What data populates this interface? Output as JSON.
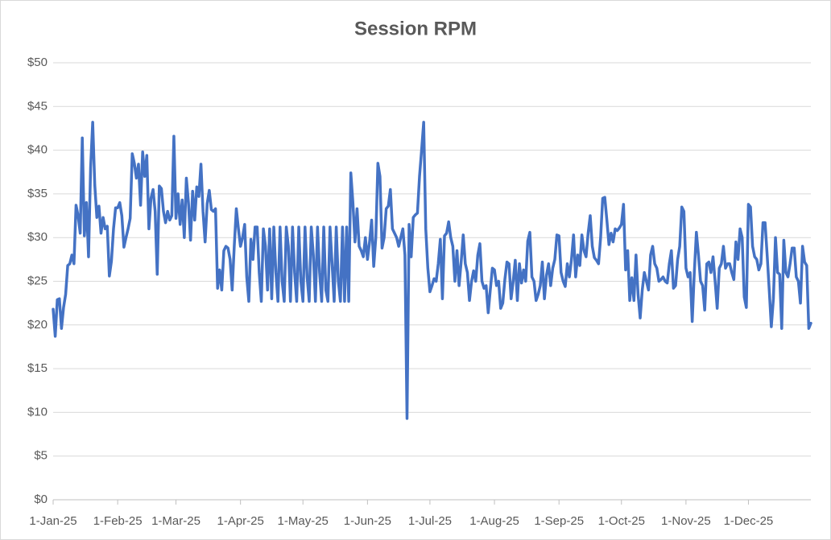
{
  "chart_data": {
    "type": "line",
    "title": "Session RPM",
    "x": [
      "2025-01-01",
      "2025-01-02",
      "2025-01-03",
      "2025-01-04",
      "2025-01-05",
      "2025-01-06",
      "2025-01-07",
      "2025-01-08",
      "2025-01-09",
      "2025-01-10",
      "2025-01-11",
      "2025-01-12",
      "2025-01-13",
      "2025-01-14",
      "2025-01-15",
      "2025-01-16",
      "2025-01-17",
      "2025-01-18",
      "2025-01-19",
      "2025-01-20",
      "2025-01-21",
      "2025-01-22",
      "2025-01-23",
      "2025-01-24",
      "2025-01-25",
      "2025-01-26",
      "2025-01-27",
      "2025-01-28",
      "2025-01-29",
      "2025-01-30",
      "2025-01-31",
      "2025-02-01",
      "2025-02-02",
      "2025-02-03",
      "2025-02-04",
      "2025-02-05",
      "2025-02-06",
      "2025-02-07",
      "2025-02-08",
      "2025-02-09",
      "2025-02-10",
      "2025-02-11",
      "2025-02-12",
      "2025-02-13",
      "2025-02-14",
      "2025-02-15",
      "2025-02-16",
      "2025-02-17",
      "2025-02-18",
      "2025-02-19",
      "2025-02-20",
      "2025-02-21",
      "2025-02-22",
      "2025-02-23",
      "2025-02-24",
      "2025-02-25",
      "2025-02-26",
      "2025-02-27",
      "2025-02-28",
      "2025-03-01",
      "2025-03-02",
      "2025-03-03",
      "2025-03-04",
      "2025-03-05",
      "2025-03-06",
      "2025-03-07",
      "2025-03-08",
      "2025-03-09",
      "2025-03-10",
      "2025-03-11",
      "2025-03-12",
      "2025-03-13",
      "2025-03-14",
      "2025-03-15",
      "2025-03-16",
      "2025-03-17",
      "2025-03-18",
      "2025-03-19",
      "2025-03-20",
      "2025-03-21",
      "2025-03-22",
      "2025-03-23",
      "2025-03-24",
      "2025-03-25",
      "2025-03-26",
      "2025-03-27",
      "2025-03-28",
      "2025-03-29",
      "2025-03-30",
      "2025-03-31",
      "2025-04-01",
      "2025-04-02",
      "2025-04-03",
      "2025-04-04",
      "2025-04-05",
      "2025-04-06",
      "2025-04-07",
      "2025-04-08",
      "2025-04-09",
      "2025-04-10",
      "2025-04-11",
      "2025-04-12",
      "2025-04-13",
      "2025-04-14",
      "2025-04-15",
      "2025-04-16",
      "2025-04-17",
      "2025-04-18",
      "2025-04-19",
      "2025-04-20",
      "2025-04-21",
      "2025-04-22",
      "2025-04-23",
      "2025-04-24",
      "2025-04-25",
      "2025-04-26",
      "2025-04-27",
      "2025-04-28",
      "2025-04-29",
      "2025-04-30",
      "2025-05-01",
      "2025-05-02",
      "2025-05-03",
      "2025-05-04",
      "2025-05-05",
      "2025-05-06",
      "2025-05-07",
      "2025-05-08",
      "2025-05-09",
      "2025-05-10",
      "2025-05-11",
      "2025-05-12",
      "2025-05-13",
      "2025-05-14",
      "2025-05-15",
      "2025-05-16",
      "2025-05-17",
      "2025-05-18",
      "2025-05-19",
      "2025-05-20",
      "2025-05-21",
      "2025-05-22",
      "2025-05-23",
      "2025-05-24",
      "2025-05-25",
      "2025-05-26",
      "2025-05-27",
      "2025-05-28",
      "2025-05-29",
      "2025-05-30",
      "2025-05-31",
      "2025-06-01",
      "2025-06-02",
      "2025-06-03",
      "2025-06-04",
      "2025-06-05",
      "2025-06-06",
      "2025-06-07",
      "2025-06-08",
      "2025-06-09",
      "2025-06-10",
      "2025-06-11",
      "2025-06-12",
      "2025-06-13",
      "2025-06-14",
      "2025-06-15",
      "2025-06-16",
      "2025-06-17",
      "2025-06-18",
      "2025-06-19",
      "2025-06-20",
      "2025-06-21",
      "2025-06-22",
      "2025-06-23",
      "2025-06-24",
      "2025-06-25",
      "2025-06-26",
      "2025-06-27",
      "2025-06-28",
      "2025-06-29",
      "2025-06-30",
      "2025-07-01",
      "2025-07-02",
      "2025-07-03",
      "2025-07-04",
      "2025-07-05",
      "2025-07-06",
      "2025-07-07",
      "2025-07-08",
      "2025-07-09",
      "2025-07-10",
      "2025-07-11",
      "2025-07-12",
      "2025-07-13",
      "2025-07-14",
      "2025-07-15",
      "2025-07-16",
      "2025-07-17",
      "2025-07-18",
      "2025-07-19",
      "2025-07-20",
      "2025-07-21",
      "2025-07-22",
      "2025-07-23",
      "2025-07-24",
      "2025-07-25",
      "2025-07-26",
      "2025-07-27",
      "2025-07-28",
      "2025-07-29",
      "2025-07-30",
      "2025-07-31",
      "2025-08-01",
      "2025-08-02",
      "2025-08-03",
      "2025-08-04",
      "2025-08-05",
      "2025-08-06",
      "2025-08-07",
      "2025-08-08",
      "2025-08-09",
      "2025-08-10",
      "2025-08-11",
      "2025-08-12",
      "2025-08-13",
      "2025-08-14",
      "2025-08-15",
      "2025-08-16",
      "2025-08-17",
      "2025-08-18",
      "2025-08-19",
      "2025-08-20",
      "2025-08-21",
      "2025-08-22",
      "2025-08-23",
      "2025-08-24",
      "2025-08-25",
      "2025-08-26",
      "2025-08-27",
      "2025-08-28",
      "2025-08-29",
      "2025-08-30",
      "2025-08-31",
      "2025-09-01",
      "2025-09-02",
      "2025-09-03",
      "2025-09-04",
      "2025-09-05",
      "2025-09-06",
      "2025-09-07",
      "2025-09-08",
      "2025-09-09",
      "2025-09-10",
      "2025-09-11",
      "2025-09-12",
      "2025-09-13",
      "2025-09-14",
      "2025-09-15",
      "2025-09-16",
      "2025-09-17",
      "2025-09-18",
      "2025-09-19",
      "2025-09-20",
      "2025-09-21",
      "2025-09-22",
      "2025-09-23",
      "2025-09-24",
      "2025-09-25",
      "2025-09-26",
      "2025-09-27",
      "2025-09-28",
      "2025-09-29",
      "2025-09-30",
      "2025-10-01",
      "2025-10-02",
      "2025-10-03",
      "2025-10-04",
      "2025-10-05",
      "2025-10-06",
      "2025-10-07",
      "2025-10-08",
      "2025-10-09",
      "2025-10-10",
      "2025-10-11",
      "2025-10-12",
      "2025-10-13",
      "2025-10-14",
      "2025-10-15",
      "2025-10-16",
      "2025-10-17",
      "2025-10-18",
      "2025-10-19",
      "2025-10-20",
      "2025-10-21",
      "2025-10-22",
      "2025-10-23",
      "2025-10-24",
      "2025-10-25",
      "2025-10-26",
      "2025-10-27",
      "2025-10-28",
      "2025-10-29",
      "2025-10-30",
      "2025-10-31",
      "2025-11-01",
      "2025-11-02",
      "2025-11-03",
      "2025-11-04",
      "2025-11-05",
      "2025-11-06",
      "2025-11-07",
      "2025-11-08",
      "2025-11-09",
      "2025-11-10",
      "2025-11-11",
      "2025-11-12",
      "2025-11-13",
      "2025-11-14",
      "2025-11-15",
      "2025-11-16",
      "2025-11-17",
      "2025-11-18",
      "2025-11-19",
      "2025-11-20",
      "2025-11-21",
      "2025-11-22",
      "2025-11-23",
      "2025-11-24",
      "2025-11-25",
      "2025-11-26",
      "2025-11-27",
      "2025-11-28",
      "2025-11-29",
      "2025-11-30",
      "2025-12-01",
      "2025-12-02",
      "2025-12-03",
      "2025-12-04",
      "2025-12-05",
      "2025-12-06",
      "2025-12-07",
      "2025-12-08",
      "2025-12-09",
      "2025-12-10",
      "2025-12-11",
      "2025-12-12",
      "2025-12-13",
      "2025-12-14",
      "2025-12-15",
      "2025-12-16",
      "2025-12-17",
      "2025-12-18",
      "2025-12-19",
      "2025-12-20",
      "2025-12-21",
      "2025-12-22",
      "2025-12-23",
      "2025-12-24",
      "2025-12-25",
      "2025-12-26",
      "2025-12-27",
      "2025-12-28",
      "2025-12-29",
      "2025-12-30",
      "2025-12-31"
    ],
    "series": [
      {
        "color": "#4472c4",
        "values": [
          21.8,
          18.7,
          22.9,
          23,
          19.6,
          22,
          23.5,
          26.8,
          27,
          28,
          27,
          33.7,
          32.5,
          30.5,
          41.4,
          30.2,
          34,
          27.8,
          38,
          43.2,
          36,
          32.3,
          33.6,
          30.5,
          32.3,
          31,
          31.3,
          25.6,
          27.3,
          31,
          33.4,
          33.4,
          34,
          32.5,
          28.9,
          30,
          31,
          32.2,
          39.6,
          38.5,
          36.8,
          38.4,
          33.7,
          39.8,
          37,
          39.4,
          31,
          34.5,
          35.5,
          33,
          25.8,
          35.9,
          35.6,
          33,
          31.7,
          33,
          32,
          32.5,
          41.6,
          32.2,
          35,
          31.5,
          34.3,
          30,
          36.8,
          34,
          29.7,
          35.3,
          32,
          35.8,
          34.7,
          38.4,
          33,
          29.5,
          33.9,
          35.4,
          33.2,
          33,
          33.3,
          24.2,
          26.3,
          24,
          28.5,
          29,
          28.8,
          27.5,
          24,
          29,
          33.3,
          31,
          29,
          30,
          31.5,
          25.5,
          22.7,
          29.8,
          27.5,
          31.2,
          31.2,
          26,
          22.7,
          31,
          29,
          24,
          31,
          23,
          31.2,
          26,
          22.7,
          31.2,
          25,
          22.7,
          31.2,
          29,
          22.7,
          31.2,
          26,
          22.7,
          31.2,
          25,
          22.7,
          31.2,
          25.5,
          22.7,
          31.2,
          28,
          22.7,
          31.2,
          26,
          22.7,
          31.2,
          24,
          22.7,
          31.2,
          27,
          22.7,
          31.2,
          25,
          22.7,
          31.2,
          22.7,
          31.2,
          22.7,
          37.4,
          34,
          29.5,
          33.3,
          29,
          28.5,
          27.8,
          30,
          27.5,
          29.5,
          32,
          26.7,
          30,
          38.5,
          37,
          28.8,
          30,
          33.3,
          33.6,
          35.5,
          31,
          30.5,
          30,
          29,
          30,
          31,
          28,
          9.3,
          31.5,
          27.8,
          32.3,
          32.6,
          32.8,
          37,
          40,
          43.2,
          31,
          26.5,
          23.8,
          24.5,
          25.3,
          25,
          27,
          29.8,
          23,
          30.2,
          30.5,
          31.8,
          30,
          29,
          25,
          28.5,
          24.5,
          27.2,
          30.3,
          27,
          26,
          22.8,
          25,
          26.2,
          25,
          28,
          29.3,
          25,
          24.2,
          24.5,
          21.4,
          24,
          26.5,
          26.3,
          24.5,
          25,
          21.9,
          22.5,
          25.2,
          27.2,
          27,
          23,
          25,
          27.4,
          22.8,
          27,
          24.8,
          26.3,
          25,
          29.6,
          30.6,
          25.5,
          25,
          22.8,
          23.5,
          24.5,
          27.2,
          23,
          25.7,
          27,
          24.5,
          26.5,
          27.5,
          30.3,
          30.2,
          26,
          25,
          24.4,
          27,
          25.5,
          27.5,
          30.3,
          25.5,
          28,
          26.8,
          30.3,
          28.5,
          27.8,
          30.5,
          32.5,
          29,
          27.7,
          27.4,
          27,
          30,
          34.5,
          34.6,
          32,
          29.2,
          30.5,
          29.5,
          31,
          30.8,
          31.1,
          31.5,
          33.8,
          26.3,
          28.5,
          22.8,
          25.4,
          22.8,
          28,
          23.5,
          20.8,
          24,
          26,
          25,
          24,
          28,
          29,
          27,
          26.5,
          25,
          25.2,
          25.5,
          25,
          24.8,
          27,
          28.5,
          24.2,
          24.5,
          27.5,
          29,
          33.5,
          33,
          26.5,
          25.5,
          26,
          20.4,
          26,
          30.6,
          28,
          25,
          24.5,
          21.7,
          27,
          27.2,
          26,
          27.8,
          25,
          21.9,
          26.5,
          27,
          29,
          26.5,
          27,
          27,
          26,
          25.2,
          29.5,
          27.5,
          31,
          30,
          23.2,
          22,
          33.8,
          33.5,
          29,
          27.8,
          27.5,
          26.3,
          27,
          31.7,
          31.7,
          28,
          24,
          19.8,
          23,
          30,
          26,
          25.8,
          19.6,
          29.7,
          26,
          25.5,
          27,
          28.8,
          28.8,
          25.5,
          25,
          22.5,
          29,
          27.2,
          26.8,
          19.6,
          20.2
        ]
      }
    ],
    "xlim": [
      "2025-01-01",
      "2025-12-31"
    ],
    "xticks": [
      {
        "value": "2025-01-01",
        "label": "1-Jan-25"
      },
      {
        "value": "2025-02-01",
        "label": "1-Feb-25"
      },
      {
        "value": "2025-03-01",
        "label": "1-Mar-25"
      },
      {
        "value": "2025-04-01",
        "label": "1-Apr-25"
      },
      {
        "value": "2025-05-01",
        "label": "1-May-25"
      },
      {
        "value": "2025-06-01",
        "label": "1-Jun-25"
      },
      {
        "value": "2025-07-01",
        "label": "1-Jul-25"
      },
      {
        "value": "2025-08-01",
        "label": "1-Aug-25"
      },
      {
        "value": "2025-09-01",
        "label": "1-Sep-25"
      },
      {
        "value": "2025-10-01",
        "label": "1-Oct-25"
      },
      {
        "value": "2025-11-01",
        "label": "1-Nov-25"
      },
      {
        "value": "2025-12-01",
        "label": "1-Dec-25"
      }
    ],
    "ylim": [
      0,
      50
    ],
    "yticks": [
      {
        "value": 0,
        "label": "$0"
      },
      {
        "value": 5,
        "label": "$5"
      },
      {
        "value": 10,
        "label": "$10"
      },
      {
        "value": 15,
        "label": "$15"
      },
      {
        "value": 20,
        "label": "$20"
      },
      {
        "value": 25,
        "label": "$25"
      },
      {
        "value": 30,
        "label": "$30"
      },
      {
        "value": 35,
        "label": "$35"
      },
      {
        "value": 40,
        "label": "$40"
      },
      {
        "value": 45,
        "label": "$45"
      },
      {
        "value": 50,
        "label": "$50"
      }
    ],
    "grid": true
  }
}
